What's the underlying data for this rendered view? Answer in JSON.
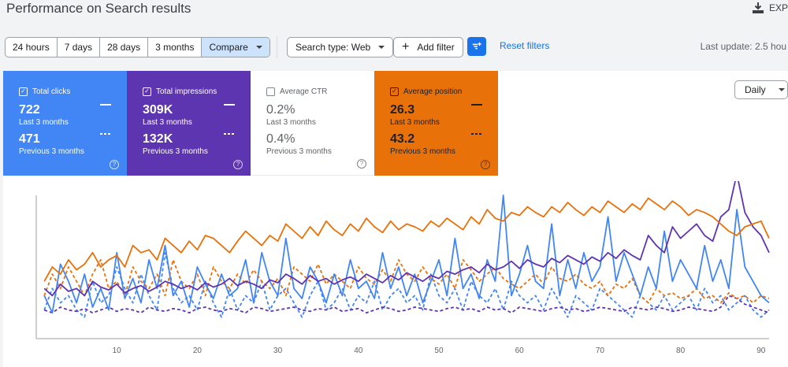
{
  "header": {
    "title": "Performance on Search results",
    "export_label": "EXP"
  },
  "toolbar": {
    "ranges": [
      "24 hours",
      "7 days",
      "28 days",
      "3 months"
    ],
    "compare_label": "Compare",
    "search_type_label": "Search type: Web",
    "add_filter_label": "Add filter",
    "reset_filters_label": "Reset filters",
    "last_update": "Last update: 2.5 hou"
  },
  "metrics": {
    "clicks": {
      "label": "Total clicks",
      "value": "722",
      "period": "Last 3 months",
      "prev_value": "471",
      "prev_period": "Previous 3 months",
      "checked": true,
      "color": "#4285f4"
    },
    "impressions": {
      "label": "Total impressions",
      "value": "309K",
      "period": "Last 3 months",
      "prev_value": "132K",
      "prev_period": "Previous 3 months",
      "checked": true,
      "color": "#5e35b1"
    },
    "ctr": {
      "label": "Average CTR",
      "value": "0.2%",
      "period": "Last 3 months",
      "prev_value": "0.4%",
      "prev_period": "Previous 3 months",
      "checked": false
    },
    "position": {
      "label": "Average position",
      "value": "26.3",
      "period": "Last 3 months",
      "prev_value": "43.2",
      "prev_period": "Previous 3 months",
      "checked": true,
      "color": "#e8710a"
    }
  },
  "granularity": {
    "selected": "Daily"
  },
  "chart_data": {
    "type": "line",
    "xlim": [
      0,
      91
    ],
    "xticks": [
      10,
      20,
      30,
      40,
      50,
      60,
      70,
      80,
      90
    ],
    "ylim": [
      0,
      100
    ],
    "grid": false,
    "series": [
      {
        "name": "Total clicks",
        "color": "#4285f4",
        "dashed": false,
        "values": [
          30,
          18,
          52,
          40,
          25,
          45,
          22,
          35,
          20,
          60,
          28,
          42,
          25,
          55,
          35,
          65,
          30,
          40,
          22,
          50,
          38,
          28,
          45,
          30,
          35,
          55,
          25,
          60,
          40,
          30,
          70,
          35,
          28,
          50,
          40,
          25,
          45,
          30,
          55,
          35,
          40,
          28,
          60,
          35,
          50,
          30,
          45,
          25,
          40,
          55,
          30,
          70,
          35,
          45,
          28,
          55,
          40,
          100,
          30,
          45,
          65,
          40,
          35,
          80,
          30,
          55,
          35,
          60,
          40,
          50,
          85,
          40,
          60,
          45,
          30,
          50,
          35,
          75,
          40,
          55,
          45,
          35,
          65,
          40,
          55,
          35,
          90,
          50,
          40,
          30,
          25
        ]
      },
      {
        "name": "Total impressions",
        "color": "#5e35b1",
        "dashed": false,
        "values": [
          35,
          30,
          38,
          33,
          35,
          30,
          40,
          36,
          34,
          38,
          32,
          35,
          37,
          33,
          36,
          40,
          38,
          35,
          37,
          34,
          39,
          36,
          38,
          42,
          37,
          40,
          38,
          35,
          41,
          39,
          45,
          42,
          38,
          44,
          40,
          42,
          38,
          41,
          43,
          40,
          45,
          42,
          39,
          44,
          41,
          46,
          43,
          40,
          44,
          42,
          47,
          45,
          48,
          50,
          46,
          52,
          48,
          50,
          54,
          49,
          55,
          52,
          50,
          56,
          53,
          58,
          55,
          52,
          57,
          54,
          60,
          56,
          62,
          58,
          55,
          72,
          65,
          60,
          78,
          70,
          75,
          80,
          72,
          68,
          85,
          90,
          115,
          88,
          78,
          72,
          60
        ]
      },
      {
        "name": "Average position",
        "color": "#e8710a",
        "dashed": false,
        "values": [
          40,
          50,
          45,
          55,
          48,
          52,
          60,
          50,
          55,
          58,
          50,
          65,
          60,
          62,
          55,
          70,
          65,
          60,
          68,
          62,
          72,
          70,
          65,
          60,
          68,
          75,
          70,
          65,
          72,
          68,
          80,
          75,
          70,
          78,
          72,
          82,
          76,
          72,
          80,
          75,
          84,
          78,
          74,
          82,
          76,
          80,
          78,
          75,
          82,
          78,
          84,
          80,
          76,
          85,
          80,
          90,
          84,
          82,
          88,
          86,
          92,
          88,
          85,
          92,
          88,
          95,
          90,
          86,
          92,
          88,
          96,
          92,
          88,
          94,
          90,
          98,
          94,
          90,
          96,
          92,
          86,
          90,
          88,
          85,
          80,
          75,
          72,
          78,
          80,
          82,
          70
        ]
      },
      {
        "name": "Total clicks (previous)",
        "color": "#4285f4",
        "dashed": true,
        "values": [
          20,
          35,
          25,
          30,
          20,
          15,
          40,
          25,
          30,
          50,
          35,
          25,
          45,
          30,
          20,
          60,
          35,
          25,
          30,
          20,
          40,
          25,
          15,
          35,
          20,
          30,
          25,
          40,
          20,
          30,
          35,
          25,
          15,
          30,
          40,
          20,
          25,
          35,
          20,
          30,
          25,
          40,
          20,
          30,
          35,
          25,
          30,
          20,
          45,
          30,
          25,
          35,
          20,
          40,
          30,
          25,
          35,
          20,
          40,
          30,
          25,
          30,
          20,
          35,
          25,
          15,
          30,
          25,
          20,
          35,
          30,
          25,
          20,
          15,
          30,
          25,
          20,
          30,
          20,
          25,
          30,
          20,
          35,
          25,
          30,
          20,
          25,
          30,
          20,
          15,
          20
        ]
      },
      {
        "name": "Total impressions (previous)",
        "color": "#5e35b1",
        "dashed": true,
        "values": [
          20,
          18,
          22,
          20,
          19,
          21,
          18,
          20,
          22,
          19,
          21,
          20,
          18,
          22,
          20,
          19,
          21,
          20,
          18,
          21,
          22,
          20,
          19,
          21,
          20,
          18,
          22,
          21,
          19,
          20,
          21,
          22,
          20,
          19,
          21,
          20,
          22,
          19,
          20,
          21,
          18,
          20,
          22,
          21,
          19,
          20,
          22,
          21,
          20,
          19,
          21,
          22,
          20,
          21,
          19,
          22,
          20,
          21,
          18,
          22,
          21,
          20,
          19,
          21,
          22,
          20,
          21,
          19,
          20,
          22,
          21,
          20,
          19,
          22,
          21,
          20,
          22,
          21,
          19,
          20,
          22,
          21,
          20,
          19,
          22,
          30,
          28,
          24,
          22,
          20,
          18
        ]
      },
      {
        "name": "Average position (previous)",
        "color": "#e8710a",
        "dashed": true,
        "values": [
          30,
          45,
          35,
          50,
          40,
          30,
          45,
          55,
          35,
          40,
          30,
          50,
          40,
          35,
          45,
          30,
          55,
          40,
          35,
          45,
          30,
          50,
          40,
          35,
          45,
          38,
          48,
          40,
          35,
          42,
          30,
          50,
          45,
          40,
          52,
          38,
          45,
          40,
          35,
          50,
          42,
          38,
          48,
          40,
          55,
          45,
          40,
          50,
          42,
          38,
          45,
          35,
          55,
          48,
          40,
          45,
          50,
          42,
          38,
          35,
          40,
          45,
          38,
          50,
          42,
          40,
          45,
          38,
          35,
          40,
          30,
          38,
          35,
          42,
          30,
          25,
          35,
          30,
          32,
          28,
          30,
          35,
          28,
          30,
          25,
          32,
          28,
          30,
          25,
          30,
          28
        ]
      }
    ]
  }
}
